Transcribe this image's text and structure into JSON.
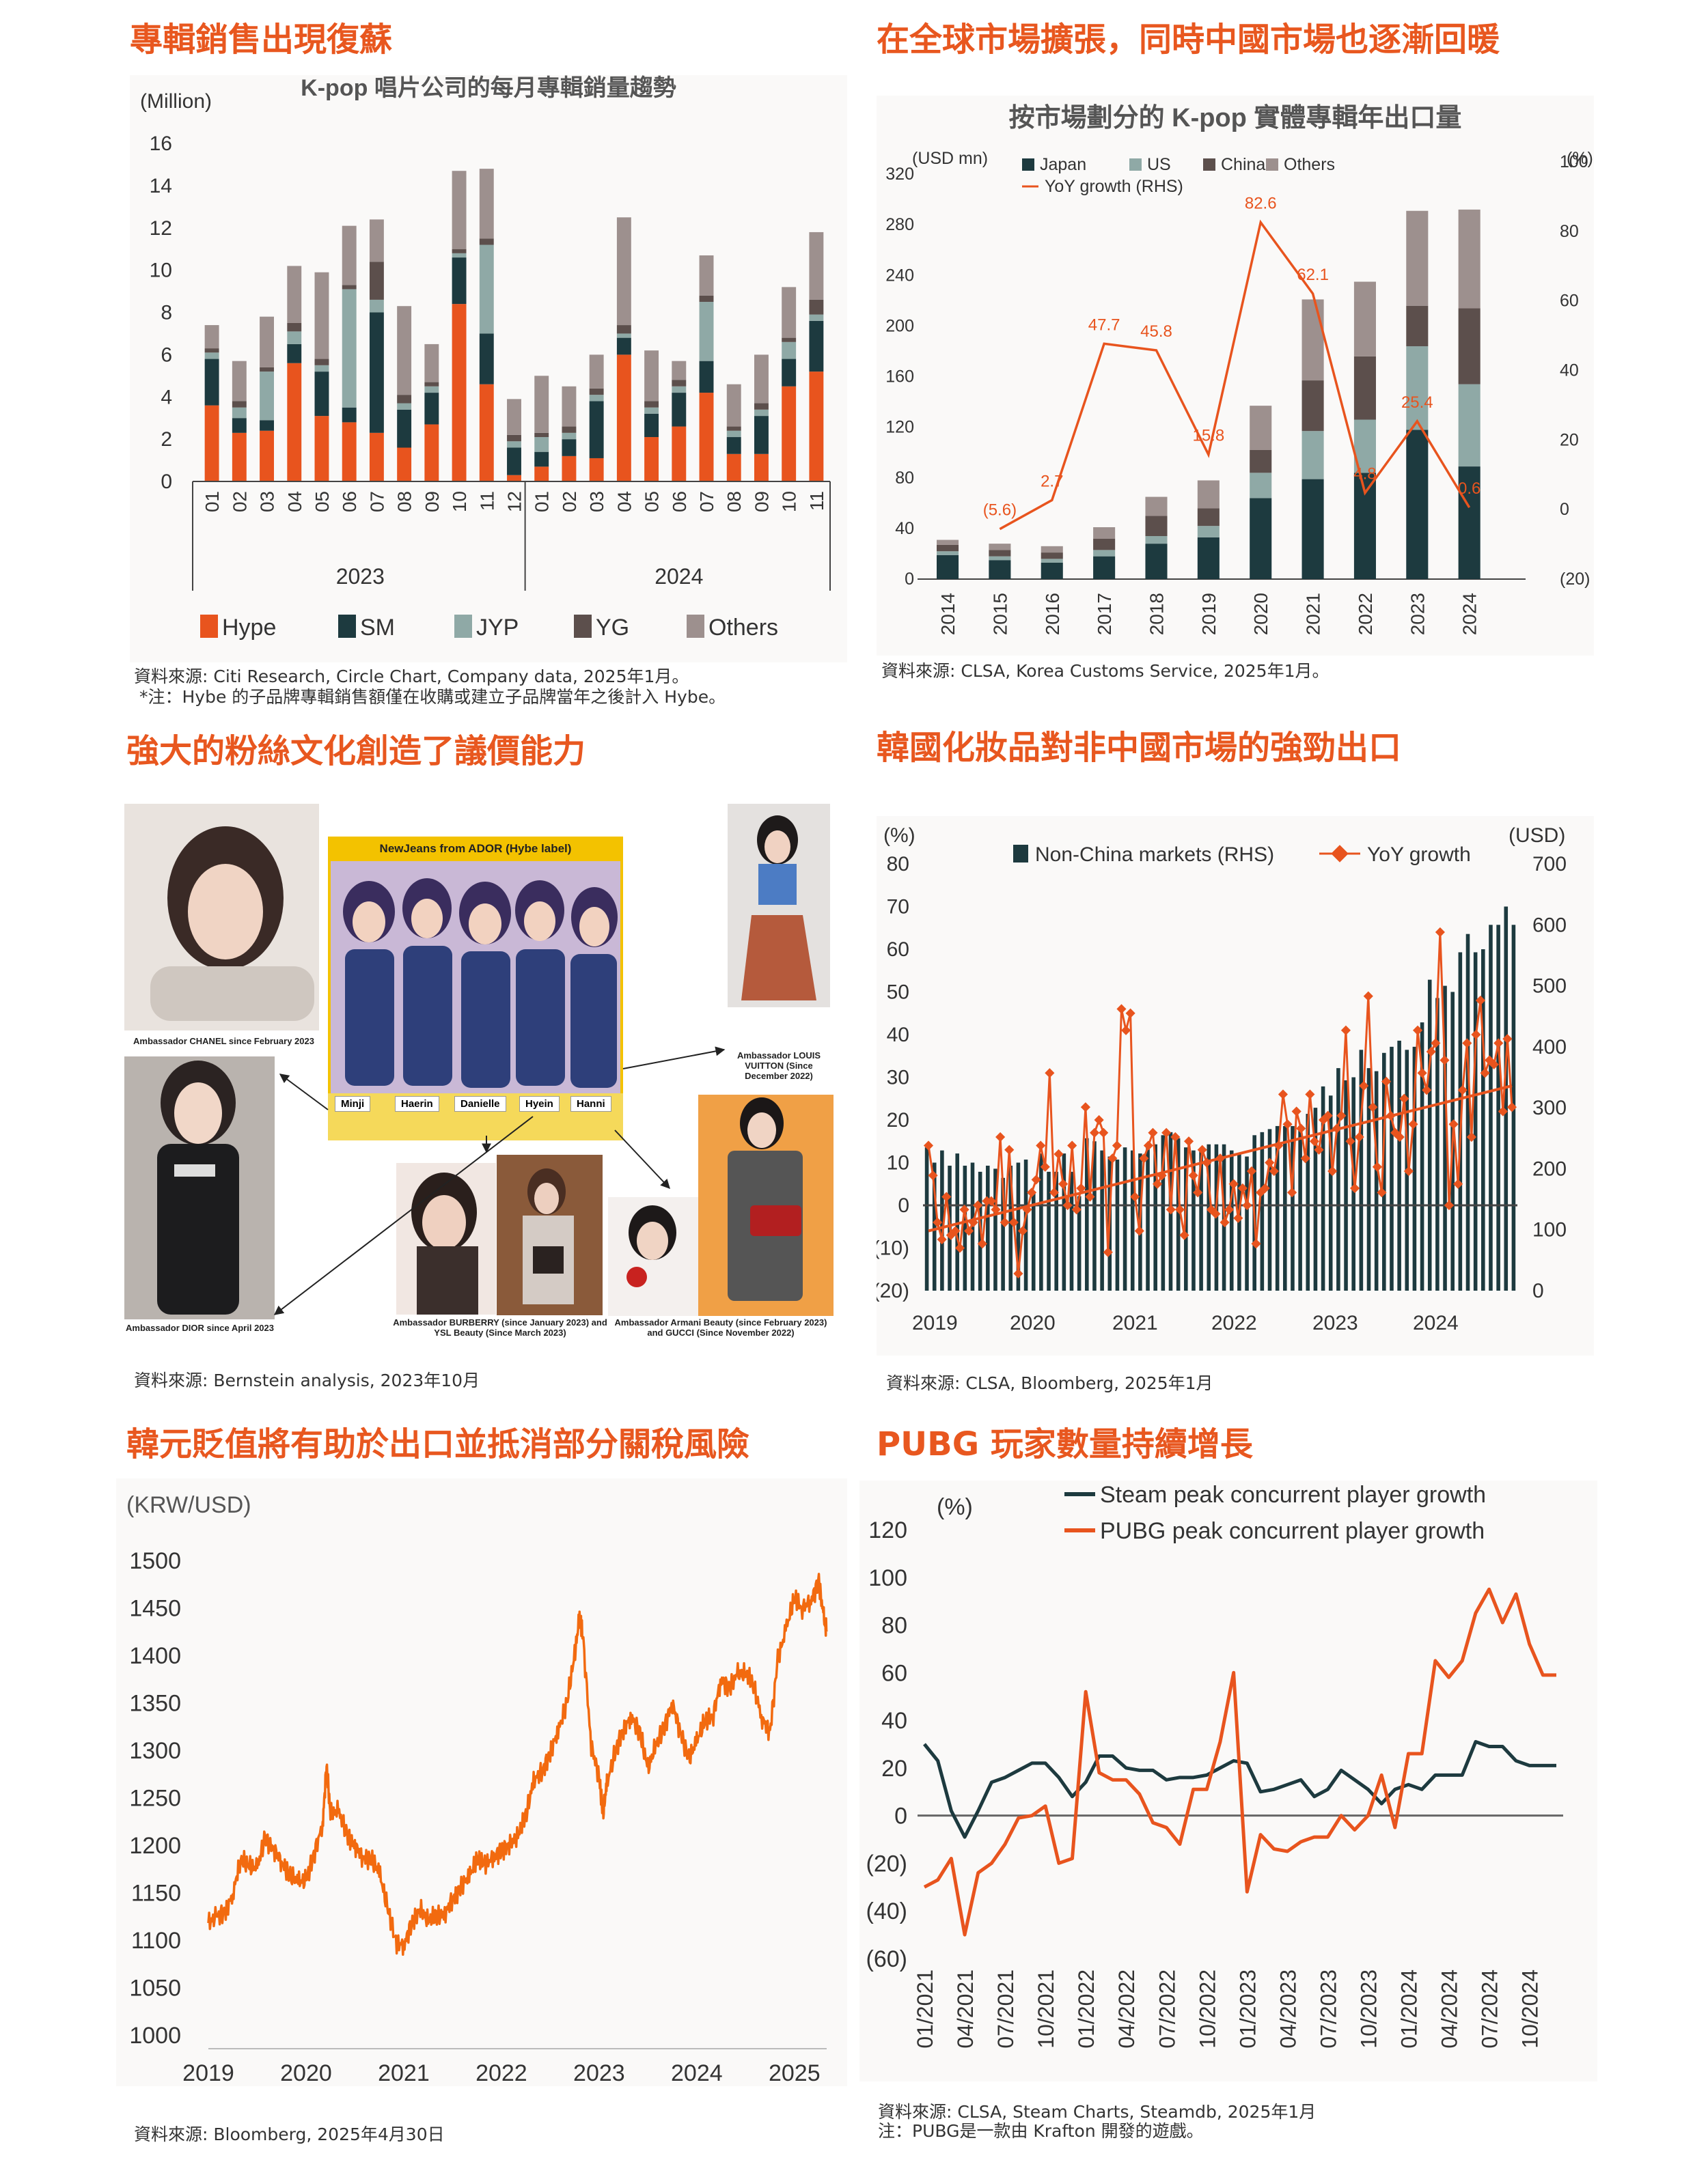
{
  "panels": {
    "p1": {
      "heading": "專輯銷售出現復蘇",
      "source": "資料來源: Citi Research, Circle Chart, Company data, 2025年1月。",
      "note": "*注：Hybe 的子品牌專輯銷售額僅在收購或建立子品牌當年之後計入 Hybe。"
    },
    "p2": {
      "heading": "在全球市場擴張，同時中國市場也逐漸回暖",
      "source": "資料來源: CLSA, Korea Customs Service, 2025年1月。"
    },
    "p3": {
      "heading": "強大的粉絲文化創造了議價能力",
      "source": "資料來源: Bernstein analysis, 2023年10月",
      "center_title": "NewJeans from ADOR (Hybe label)",
      "members": [
        "Minji",
        "Haerin",
        "Danielle",
        "Hyein",
        "Hanni"
      ],
      "captions": {
        "chanel": "Ambassador CHANEL since February 2023",
        "dior": "Ambassador DIOR since April 2023",
        "lv": "Ambassador LOUIS VUITTON (Since December 2022)",
        "burberry": "Ambassador BURBERRY (since January 2023) and YSL Beauty (Since March 2023)",
        "armani": "Ambassador Armani Beauty (since February 2023) and GUCCI (Since November 2022)"
      }
    },
    "p4": {
      "heading": "韓國化妝品對非中國市場的強勁出口",
      "source": "資料來源: CLSA, Bloomberg, 2025年1月"
    },
    "p5": {
      "heading": "韓元貶值將有助於出口並抵消部分關稅風險",
      "source": "資料來源: Bloomberg, 2025年4月30日"
    },
    "p6": {
      "heading": "PUBG 玩家數量持續增長",
      "source": "資料來源: CLSA, Steam Charts, Steamdb, 2025年1月",
      "note": "注：PUBG是一款由 Krafton 開發的遊戲。"
    }
  },
  "chart_data": [
    {
      "id": "album-sales",
      "type": "bar",
      "title": "K-pop 唱片公司的每月專輯銷量趨勢",
      "ylabel": "(Million)",
      "ylim": [
        0,
        16
      ],
      "yticks": [
        0,
        2,
        4,
        6,
        8,
        10,
        12,
        14,
        16
      ],
      "categories": [
        "01",
        "02",
        "03",
        "04",
        "05",
        "06",
        "07",
        "08",
        "09",
        "10",
        "11",
        "12",
        "01",
        "02",
        "03",
        "04",
        "05",
        "06",
        "07",
        "08",
        "09",
        "10",
        "11"
      ],
      "groups": [
        "2023",
        "2024"
      ],
      "legend": "bottom",
      "series": [
        {
          "name": "Hype",
          "color": "#e8541e",
          "values": [
            3.6,
            2.3,
            2.4,
            5.6,
            3.1,
            2.8,
            2.3,
            1.6,
            2.7,
            8.4,
            4.6,
            0.3,
            0.7,
            1.2,
            1.1,
            6.0,
            2.1,
            2.6,
            4.2,
            1.3,
            1.3,
            4.5,
            5.2
          ]
        },
        {
          "name": "SM",
          "color": "#1d3a3f",
          "values": [
            2.2,
            0.7,
            0.5,
            0.9,
            2.1,
            0.7,
            5.7,
            1.8,
            1.5,
            2.2,
            2.4,
            1.3,
            0.7,
            0.8,
            2.7,
            0.8,
            1.1,
            1.6,
            1.5,
            0.8,
            1.8,
            1.3,
            2.4
          ]
        },
        {
          "name": "JYP",
          "color": "#8fa9a6",
          "values": [
            0.3,
            0.5,
            2.3,
            0.6,
            0.3,
            5.6,
            0.6,
            0.3,
            0.3,
            0.2,
            4.2,
            0.3,
            0.7,
            0.3,
            0.3,
            0.2,
            0.3,
            0.3,
            2.8,
            0.3,
            0.3,
            0.8,
            0.3
          ]
        },
        {
          "name": "YG",
          "color": "#5c4f4c",
          "values": [
            0.2,
            0.3,
            0.2,
            0.4,
            0.3,
            0.2,
            1.8,
            0.4,
            0.2,
            0.2,
            0.3,
            0.3,
            0.2,
            0.3,
            0.3,
            0.4,
            0.3,
            0.3,
            0.3,
            0.2,
            0.3,
            0.2,
            0.7
          ]
        },
        {
          "name": "Others",
          "color": "#9d908e",
          "values": [
            1.1,
            1.9,
            2.4,
            2.7,
            4.1,
            2.8,
            2.0,
            4.2,
            1.8,
            3.7,
            3.3,
            1.7,
            2.7,
            1.9,
            1.6,
            5.1,
            2.4,
            0.9,
            1.9,
            2.0,
            2.3,
            2.4,
            3.2
          ]
        }
      ]
    },
    {
      "id": "album-exports",
      "type": "bar",
      "title": "按市場劃分的 K-pop 實體專輯年出口量",
      "ylabel": "(USD mn)",
      "ylabel_right": "(%)",
      "ylim": [
        0,
        320
      ],
      "yticks": [
        0,
        40,
        80,
        120,
        160,
        200,
        240,
        280,
        320
      ],
      "ylim_right": [
        -20,
        100
      ],
      "yticks_right": [
        -20,
        0,
        20,
        40,
        60,
        80,
        100
      ],
      "yticks_right_labels": [
        "(20)",
        "0",
        "20",
        "40",
        "60",
        "80",
        "100"
      ],
      "categories": [
        "2014",
        "2015",
        "2016",
        "2017",
        "2018",
        "2019",
        "2020",
        "2021",
        "2022",
        "2023",
        "2024"
      ],
      "legend": "top",
      "series": [
        {
          "name": "Japan",
          "color": "#1d3a3f",
          "values": [
            19,
            15,
            13,
            18,
            28,
            33,
            64,
            79,
            84,
            118,
            89
          ]
        },
        {
          "name": "US",
          "color": "#8fa9a6",
          "values": [
            3,
            3,
            3,
            5,
            6,
            9,
            20,
            38,
            42,
            66,
            65
          ]
        },
        {
          "name": "China",
          "color": "#5c4f4c",
          "values": [
            5,
            5,
            5,
            9,
            16,
            14,
            18,
            40,
            50,
            32,
            60
          ]
        },
        {
          "name": "Others",
          "color": "#9d908e",
          "values": [
            4,
            5,
            5,
            9,
            15,
            22,
            35,
            64,
            59,
            75,
            78
          ]
        }
      ],
      "line": {
        "name": "YoY growth (RHS)",
        "color": "#e8541e",
        "values": [
          null,
          -5.6,
          2.7,
          47.7,
          45.8,
          15.8,
          82.6,
          62.1,
          4.8,
          25.4,
          0.6
        ],
        "labels": [
          "",
          "(5.6)",
          "2.7",
          "47.7",
          "45.8",
          "15.8",
          "82.6",
          "62.1",
          "4.8",
          "25.4",
          "0.6"
        ]
      }
    },
    {
      "id": "cosmetics-exports",
      "type": "bar",
      "title": "",
      "ylabel": "(%)",
      "ylabel_right": "(USD)",
      "ylim": [
        -20,
        80
      ],
      "yticks": [
        -20,
        -10,
        0,
        10,
        20,
        30,
        40,
        50,
        60,
        70,
        80
      ],
      "ytick_labels": [
        "(20)",
        "(10)",
        "0",
        "10",
        "20",
        "30",
        "40",
        "50",
        "60",
        "70",
        "80"
      ],
      "ylim_right": [
        0,
        700
      ],
      "yticks_right": [
        0,
        100,
        200,
        300,
        400,
        500,
        600,
        700
      ],
      "xticks": [
        "2019",
        "2020",
        "2021",
        "2022",
        "2023",
        "2024"
      ],
      "legend": "top",
      "series": [
        {
          "name": "Non-China markets (RHS)",
          "color": "#1d3a3f",
          "values": [
            235,
            210,
            230,
            205,
            225,
            205,
            210,
            195,
            205,
            200,
            185,
            205,
            210,
            215,
            160,
            225,
            195,
            195,
            225,
            195,
            155,
            250,
            245,
            230,
            220,
            215,
            235,
            230,
            225,
            240,
            240,
            255,
            260,
            250,
            235,
            230,
            230,
            240,
            240,
            240,
            230,
            225,
            220,
            255,
            260,
            265,
            270,
            270,
            270,
            270,
            290,
            300,
            335,
            320,
            365,
            345,
            350,
            395,
            365,
            360,
            390,
            400,
            410,
            395,
            400,
            440,
            510,
            480,
            500,
            490,
            555,
            585,
            555,
            560,
            600,
            600,
            630,
            600
          ]
        }
      ],
      "line": {
        "name": "YoY growth",
        "color": "#e8541e",
        "values": [
          14,
          7,
          -4,
          -8,
          2,
          -7,
          -6,
          -10,
          -1,
          -6,
          -4,
          0,
          -9,
          1,
          1,
          -1,
          16,
          -4,
          13,
          -4,
          -16,
          -6,
          -1,
          3,
          6,
          14,
          9,
          31,
          3,
          12,
          5,
          0,
          14,
          -1,
          4,
          23,
          2,
          17,
          20,
          17,
          -11,
          11,
          14,
          46,
          41,
          45,
          2,
          -6,
          11,
          14,
          17,
          5,
          7,
          17,
          -1,
          16,
          -1,
          -7,
          15,
          7,
          3,
          13,
          10,
          -1,
          -2,
          11,
          -4,
          -1,
          5,
          -3,
          4,
          0,
          8,
          -9,
          3,
          4,
          10,
          8,
          14,
          26,
          19,
          3,
          22,
          18,
          11,
          26,
          15,
          13,
          20,
          21,
          8,
          18,
          21,
          41,
          15,
          4,
          16,
          28,
          49,
          23,
          9,
          3,
          29,
          21,
          17,
          16,
          25,
          8,
          19,
          41,
          31,
          27,
          36,
          38,
          64,
          34,
          0,
          19,
          5,
          27,
          38,
          16,
          40,
          48,
          31,
          34,
          33,
          38,
          22,
          39,
          23
        ]
      },
      "trend": {
        "from": -6,
        "to": 28
      }
    },
    {
      "id": "krw-usd",
      "type": "line",
      "title": "",
      "ylabel": "(KRW/USD)",
      "ylim": [
        1000,
        1500
      ],
      "yticks": [
        1000,
        1050,
        1100,
        1150,
        1200,
        1250,
        1300,
        1350,
        1400,
        1450,
        1500
      ],
      "xticks": [
        "2019",
        "2020",
        "2021",
        "2022",
        "2023",
        "2024",
        "2025"
      ],
      "x_start": 2019.0,
      "x_end": 2025.33,
      "series": [
        {
          "name": "",
          "color": "#f26a0f",
          "x": [
            2019.0,
            2019.08,
            2019.17,
            2019.25,
            2019.33,
            2019.42,
            2019.5,
            2019.58,
            2019.67,
            2019.75,
            2019.83,
            2019.92,
            2020.0,
            2020.08,
            2020.17,
            2020.21,
            2020.25,
            2020.33,
            2020.42,
            2020.5,
            2020.58,
            2020.67,
            2020.75,
            2020.83,
            2020.92,
            2021.0,
            2021.08,
            2021.17,
            2021.25,
            2021.33,
            2021.42,
            2021.5,
            2021.58,
            2021.67,
            2021.75,
            2021.83,
            2021.92,
            2022.0,
            2022.08,
            2022.17,
            2022.25,
            2022.33,
            2022.42,
            2022.5,
            2022.58,
            2022.67,
            2022.75,
            2022.8,
            2022.83,
            2022.92,
            2023.0,
            2023.04,
            2023.08,
            2023.17,
            2023.25,
            2023.33,
            2023.42,
            2023.5,
            2023.58,
            2023.67,
            2023.75,
            2023.83,
            2023.92,
            2024.0,
            2024.08,
            2024.17,
            2024.25,
            2024.33,
            2024.42,
            2024.5,
            2024.58,
            2024.67,
            2024.75,
            2024.83,
            2024.92,
            2025.0,
            2025.08,
            2025.17,
            2025.25,
            2025.3,
            2025.33
          ],
          "values": [
            1118,
            1124,
            1130,
            1148,
            1186,
            1177,
            1176,
            1208,
            1196,
            1183,
            1168,
            1162,
            1162,
            1190,
            1222,
            1285,
            1232,
            1236,
            1210,
            1200,
            1188,
            1185,
            1172,
            1135,
            1098,
            1094,
            1118,
            1132,
            1120,
            1125,
            1127,
            1144,
            1155,
            1168,
            1184,
            1180,
            1187,
            1195,
            1200,
            1210,
            1230,
            1268,
            1278,
            1298,
            1320,
            1350,
            1400,
            1441,
            1425,
            1305,
            1272,
            1232,
            1265,
            1300,
            1323,
            1335,
            1318,
            1280,
            1305,
            1325,
            1350,
            1320,
            1290,
            1310,
            1330,
            1338,
            1375,
            1365,
            1380,
            1380,
            1370,
            1333,
            1320,
            1395,
            1430,
            1460,
            1450,
            1458,
            1478,
            1440,
            1425
          ]
        }
      ]
    },
    {
      "id": "pubg-players",
      "type": "line",
      "title": "",
      "ylabel": "(%)",
      "ylim": [
        -60,
        120
      ],
      "yticks": [
        -60,
        -40,
        -20,
        0,
        20,
        40,
        60,
        80,
        100,
        120
      ],
      "ytick_labels": [
        "(60)",
        "(40)",
        "(20)",
        "0",
        "20",
        "40",
        "60",
        "80",
        "100",
        "120"
      ],
      "categories": [
        "01/2021",
        "02/2021",
        "03/2021",
        "04/2021",
        "05/2021",
        "06/2021",
        "07/2021",
        "08/2021",
        "09/2021",
        "10/2021",
        "11/2021",
        "12/2021",
        "01/2022",
        "02/2022",
        "03/2022",
        "04/2022",
        "05/2022",
        "06/2022",
        "07/2022",
        "08/2022",
        "09/2022",
        "10/2022",
        "11/2022",
        "12/2022",
        "01/2023",
        "02/2023",
        "03/2023",
        "04/2023",
        "05/2023",
        "06/2023",
        "07/2023",
        "08/2023",
        "09/2023",
        "10/2023",
        "11/2023",
        "12/2023",
        "01/2024",
        "02/2024",
        "03/2024",
        "04/2024",
        "05/2024",
        "06/2024",
        "07/2024",
        "08/2024",
        "09/2024",
        "10/2024",
        "11/2024",
        "12/2024"
      ],
      "xticks": [
        "01/2021",
        "04/2021",
        "07/2021",
        "10/2021",
        "01/2022",
        "04/2022",
        "07/2022",
        "10/2022",
        "01/2023",
        "04/2023",
        "07/2023",
        "10/2023",
        "01/2024",
        "04/2024",
        "07/2024",
        "10/2024"
      ],
      "legend": "top",
      "series": [
        {
          "name": "Steam peak concurrent player growth",
          "color": "#1d3a3f",
          "values": [
            30,
            23,
            2,
            -9,
            2,
            14,
            16,
            19,
            22,
            22,
            16,
            8,
            14,
            25,
            25,
            20,
            19,
            19,
            15,
            16,
            16,
            17,
            20,
            23,
            22,
            10,
            11,
            13,
            15,
            8,
            11,
            19,
            15,
            11,
            5,
            11,
            13,
            11,
            17,
            17,
            17,
            31,
            29,
            29,
            23,
            21,
            21,
            21
          ]
        },
        {
          "name": "PUBG peak concurrent player growth",
          "color": "#e8541e",
          "values": [
            -30,
            -27,
            -18,
            -50,
            -24,
            -20,
            -12,
            -1,
            0,
            4,
            -20,
            -18,
            52,
            18,
            15,
            15,
            9,
            -3,
            -5,
            -12,
            11,
            11,
            31,
            60,
            -32,
            -8,
            -14,
            -15,
            -11,
            -9,
            -9,
            0,
            -6,
            0,
            17,
            -5,
            26,
            26,
            65,
            58,
            65,
            85,
            95,
            81,
            93,
            72,
            59,
            59
          ]
        }
      ]
    }
  ]
}
